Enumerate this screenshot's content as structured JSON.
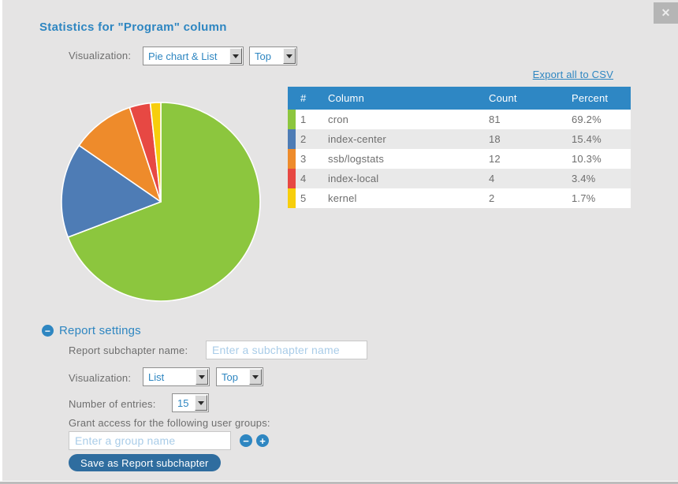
{
  "dialog": {
    "title": "Statistics for \"Program\" column"
  },
  "icons": {
    "close": "✕",
    "collapse_minus": "−",
    "remove_group": "−",
    "add_group": "+"
  },
  "top_controls": {
    "visualization_label": "Visualization:",
    "visualization_selected": "Pie chart & List",
    "top_selected": "Top"
  },
  "export": {
    "label": "Export all to CSV"
  },
  "table": {
    "headers": {
      "index": "#",
      "column": "Column",
      "count": "Count",
      "percent": "Percent"
    },
    "rows": [
      {
        "index": "1",
        "column": "cron",
        "count": "81",
        "percent": "69.2%",
        "color": "#8CC63E"
      },
      {
        "index": "2",
        "column": "index-center",
        "count": "18",
        "percent": "15.4%",
        "color": "#4E7CB5"
      },
      {
        "index": "3",
        "column": "ssb/logstats",
        "count": "12",
        "percent": "10.3%",
        "color": "#EE8B2B"
      },
      {
        "index": "4",
        "column": "index-local",
        "count": "4",
        "percent": "3.4%",
        "color": "#E74843"
      },
      {
        "index": "5",
        "column": "kernel",
        "count": "2",
        "percent": "1.7%",
        "color": "#F7CE0C"
      }
    ]
  },
  "chart_data": {
    "type": "pie",
    "labels": [
      "cron",
      "index-center",
      "ssb/logstats",
      "index-local",
      "kernel"
    ],
    "counts": [
      81,
      18,
      12,
      4,
      2
    ],
    "values_percent": [
      69.2,
      15.4,
      10.3,
      3.4,
      1.7
    ],
    "colors": [
      "#8CC63E",
      "#4E7CB5",
      "#EE8B2B",
      "#E74843",
      "#F7CE0C"
    ],
    "start_angle_deg": 0,
    "direction": "clockwise",
    "legend": "shown as table on the right"
  },
  "report_settings": {
    "section_title": "Report settings",
    "subchapter_label": "Report subchapter name:",
    "subchapter_value": "",
    "subchapter_placeholder": "Enter a subchapter name",
    "visualization_label": "Visualization:",
    "visualization_selected": "List",
    "top_selected": "Top",
    "entries_label": "Number of entries:",
    "entries_selected": "15",
    "grant_access_label": "Grant access for the following user groups:",
    "group_value": "",
    "group_placeholder": "Enter a group name",
    "save_button_label": "Save as Report subchapter"
  },
  "colors": {
    "accent_blue": "#2E86C1",
    "table_header_bg": "#2E87C4",
    "dialog_bg": "#E5E4E4",
    "row_alt_bg": "#E9E9E9",
    "save_button_bg": "#2F6D9F",
    "placeholder_blue": "#A9CCE8",
    "close_btn_bg": "#B5B5B5"
  }
}
